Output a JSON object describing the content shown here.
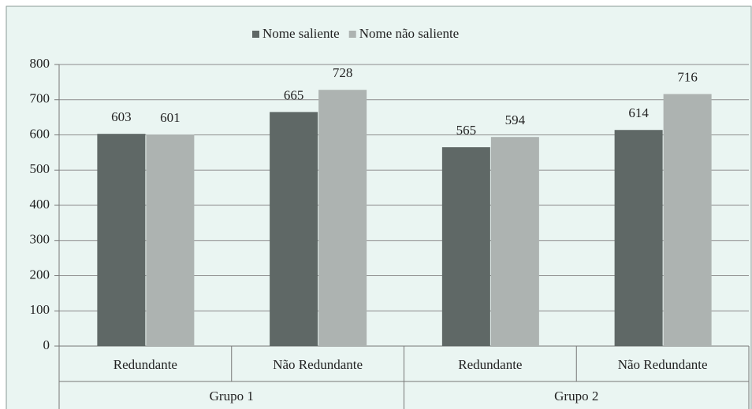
{
  "chart_data": {
    "type": "bar",
    "categories": [
      "Redundante",
      "Não Redundante",
      "Redundante",
      "Não Redundante"
    ],
    "groups": [
      "Grupo 1",
      "Grupo 2"
    ],
    "series": [
      {
        "name": "Nome saliente",
        "color": "#5f6866",
        "values": [
          603,
          665,
          565,
          614
        ]
      },
      {
        "name": "Nome não saliente",
        "color": "#adb3b1",
        "values": [
          601,
          728,
          594,
          716
        ]
      }
    ],
    "ylim": [
      0,
      800
    ],
    "yticks": [
      0,
      100,
      200,
      300,
      400,
      500,
      600,
      700,
      800
    ],
    "grid": true,
    "legend": "top"
  }
}
